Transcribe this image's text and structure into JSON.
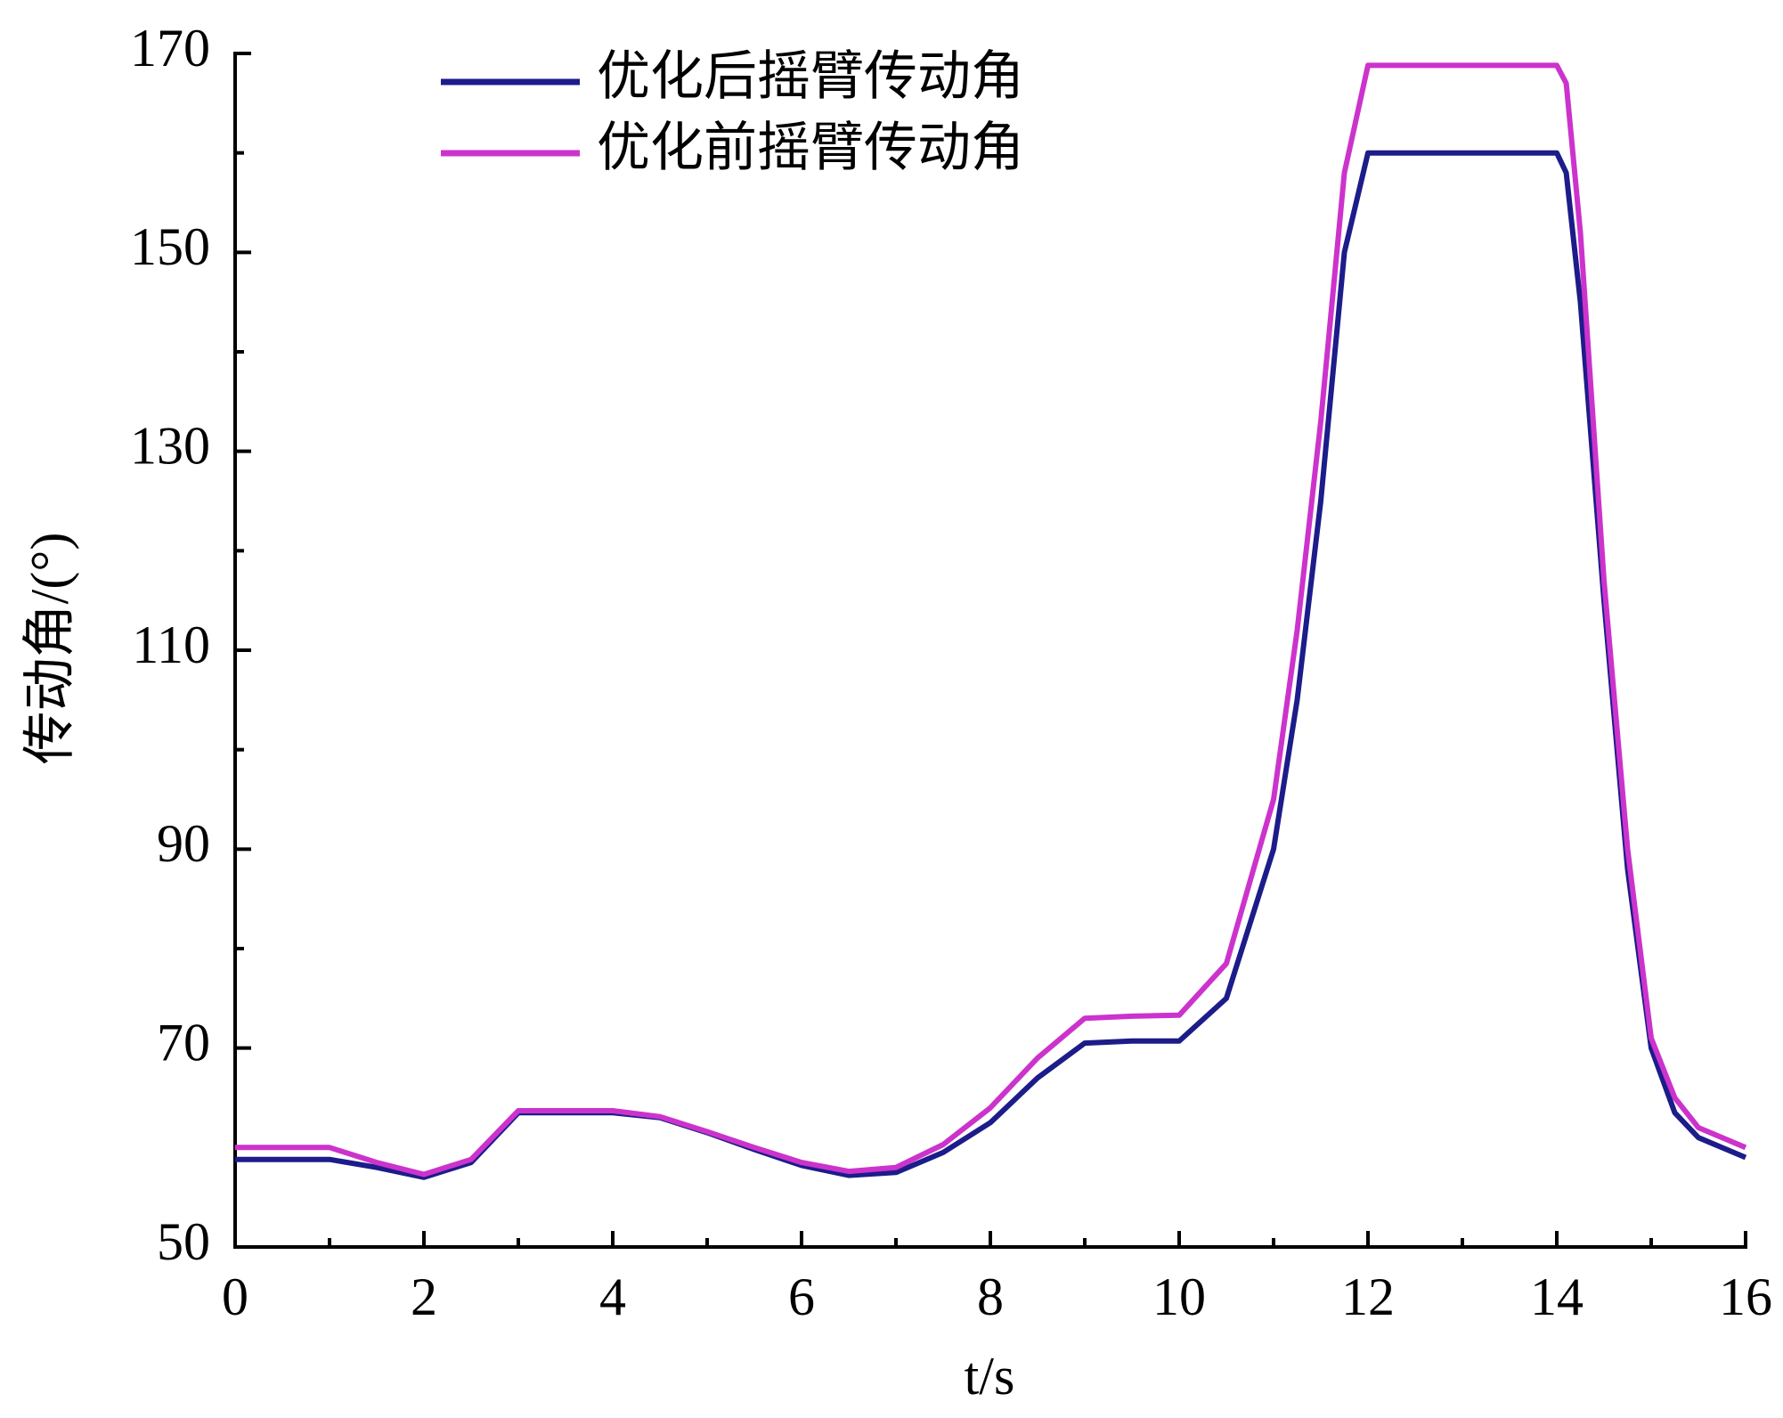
{
  "chart_data": {
    "type": "line",
    "x_label": "t/s",
    "y_label": "传动角/(°)",
    "x": [
      0,
      0.5,
      1,
      1.5,
      2,
      2.5,
      3,
      3.5,
      4,
      4.5,
      5,
      5.5,
      6,
      6.5,
      7,
      7.5,
      8,
      8.5,
      9,
      9.5,
      10,
      10.5,
      11,
      11.25,
      11.5,
      11.75,
      12,
      12.5,
      13,
      13.5,
      14,
      14.1,
      14.25,
      14.5,
      14.75,
      15,
      15.25,
      15.5,
      16
    ],
    "series": [
      {
        "name": "优化后摇臂传动角",
        "color": "#1c1c8a",
        "values": [
          58.8,
          58.8,
          58.8,
          58,
          57,
          58.5,
          63.5,
          63.5,
          63.5,
          63,
          61.5,
          59.8,
          58.2,
          57.2,
          57.5,
          59.5,
          62.5,
          67,
          70.5,
          70.7,
          70.7,
          75,
          90,
          105,
          125,
          150,
          160,
          160,
          160,
          160,
          160,
          158,
          145,
          115,
          88,
          70,
          63.5,
          61,
          59
        ]
      },
      {
        "name": "优化前摇臂传动角",
        "color": "#cc33cc",
        "values": [
          60,
          60,
          60,
          58.5,
          57.3,
          58.8,
          63.7,
          63.7,
          63.7,
          63.1,
          61.6,
          60,
          58.5,
          57.6,
          58,
          60.3,
          64,
          69,
          73,
          73.2,
          73.3,
          78.5,
          95,
          112,
          133,
          158,
          168.8,
          168.8,
          168.8,
          168.8,
          168.8,
          167,
          152,
          117,
          90,
          71,
          65,
          62,
          60
        ]
      }
    ],
    "xlim": [
      0,
      16
    ],
    "xticks": [
      0,
      2,
      4,
      6,
      8,
      10,
      12,
      14,
      16
    ],
    "xminor_ticks": [
      1,
      3,
      5,
      7,
      9,
      11,
      13,
      15
    ],
    "ylim": [
      50,
      170
    ],
    "yticks": [
      50,
      70,
      90,
      110,
      130,
      150,
      170
    ],
    "yminor_ticks": [
      60,
      80,
      100,
      120,
      140,
      160
    ],
    "legend": "upper left",
    "grid": false
  }
}
